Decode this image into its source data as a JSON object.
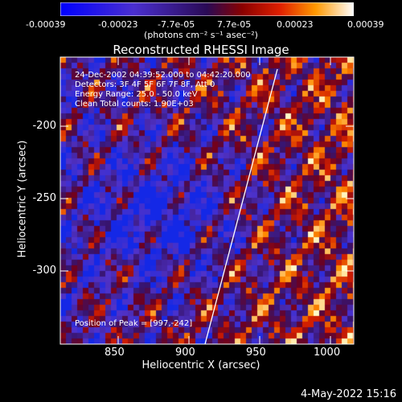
{
  "colorbar": {
    "ticks": [
      "-0.00039",
      "-0.00023",
      "-7.7e-05",
      "7.7e-05",
      "0.00023",
      "0.00039"
    ],
    "unit": "(photons cm⁻² s⁻¹ asec⁻²)"
  },
  "title": "Reconstructed RHESSI Image",
  "annotations": {
    "time": "24-Dec-2002 04:39:52.000 to 04:42:20.000",
    "detectors": "Detectors: 3F 4F 5F 6F 7F 8F, Att 0",
    "energy": "Energy Range: 25.0 - 50.0 keV",
    "method": "Clean     Total counts: 1.90E+03",
    "peak": "Position of Peak = [997,-242]"
  },
  "axes": {
    "xlabel": "Heliocentric X (arcsec)",
    "ylabel": "Heliocentric Y (arcsec)",
    "xticks": [
      "850",
      "900",
      "950",
      "1000"
    ],
    "yticks": [
      "-200",
      "-250",
      "-300"
    ]
  },
  "timestamp": "4-May-2022 15:16",
  "colors": {
    "background": "#000000",
    "foreground": "#ffffff"
  }
}
